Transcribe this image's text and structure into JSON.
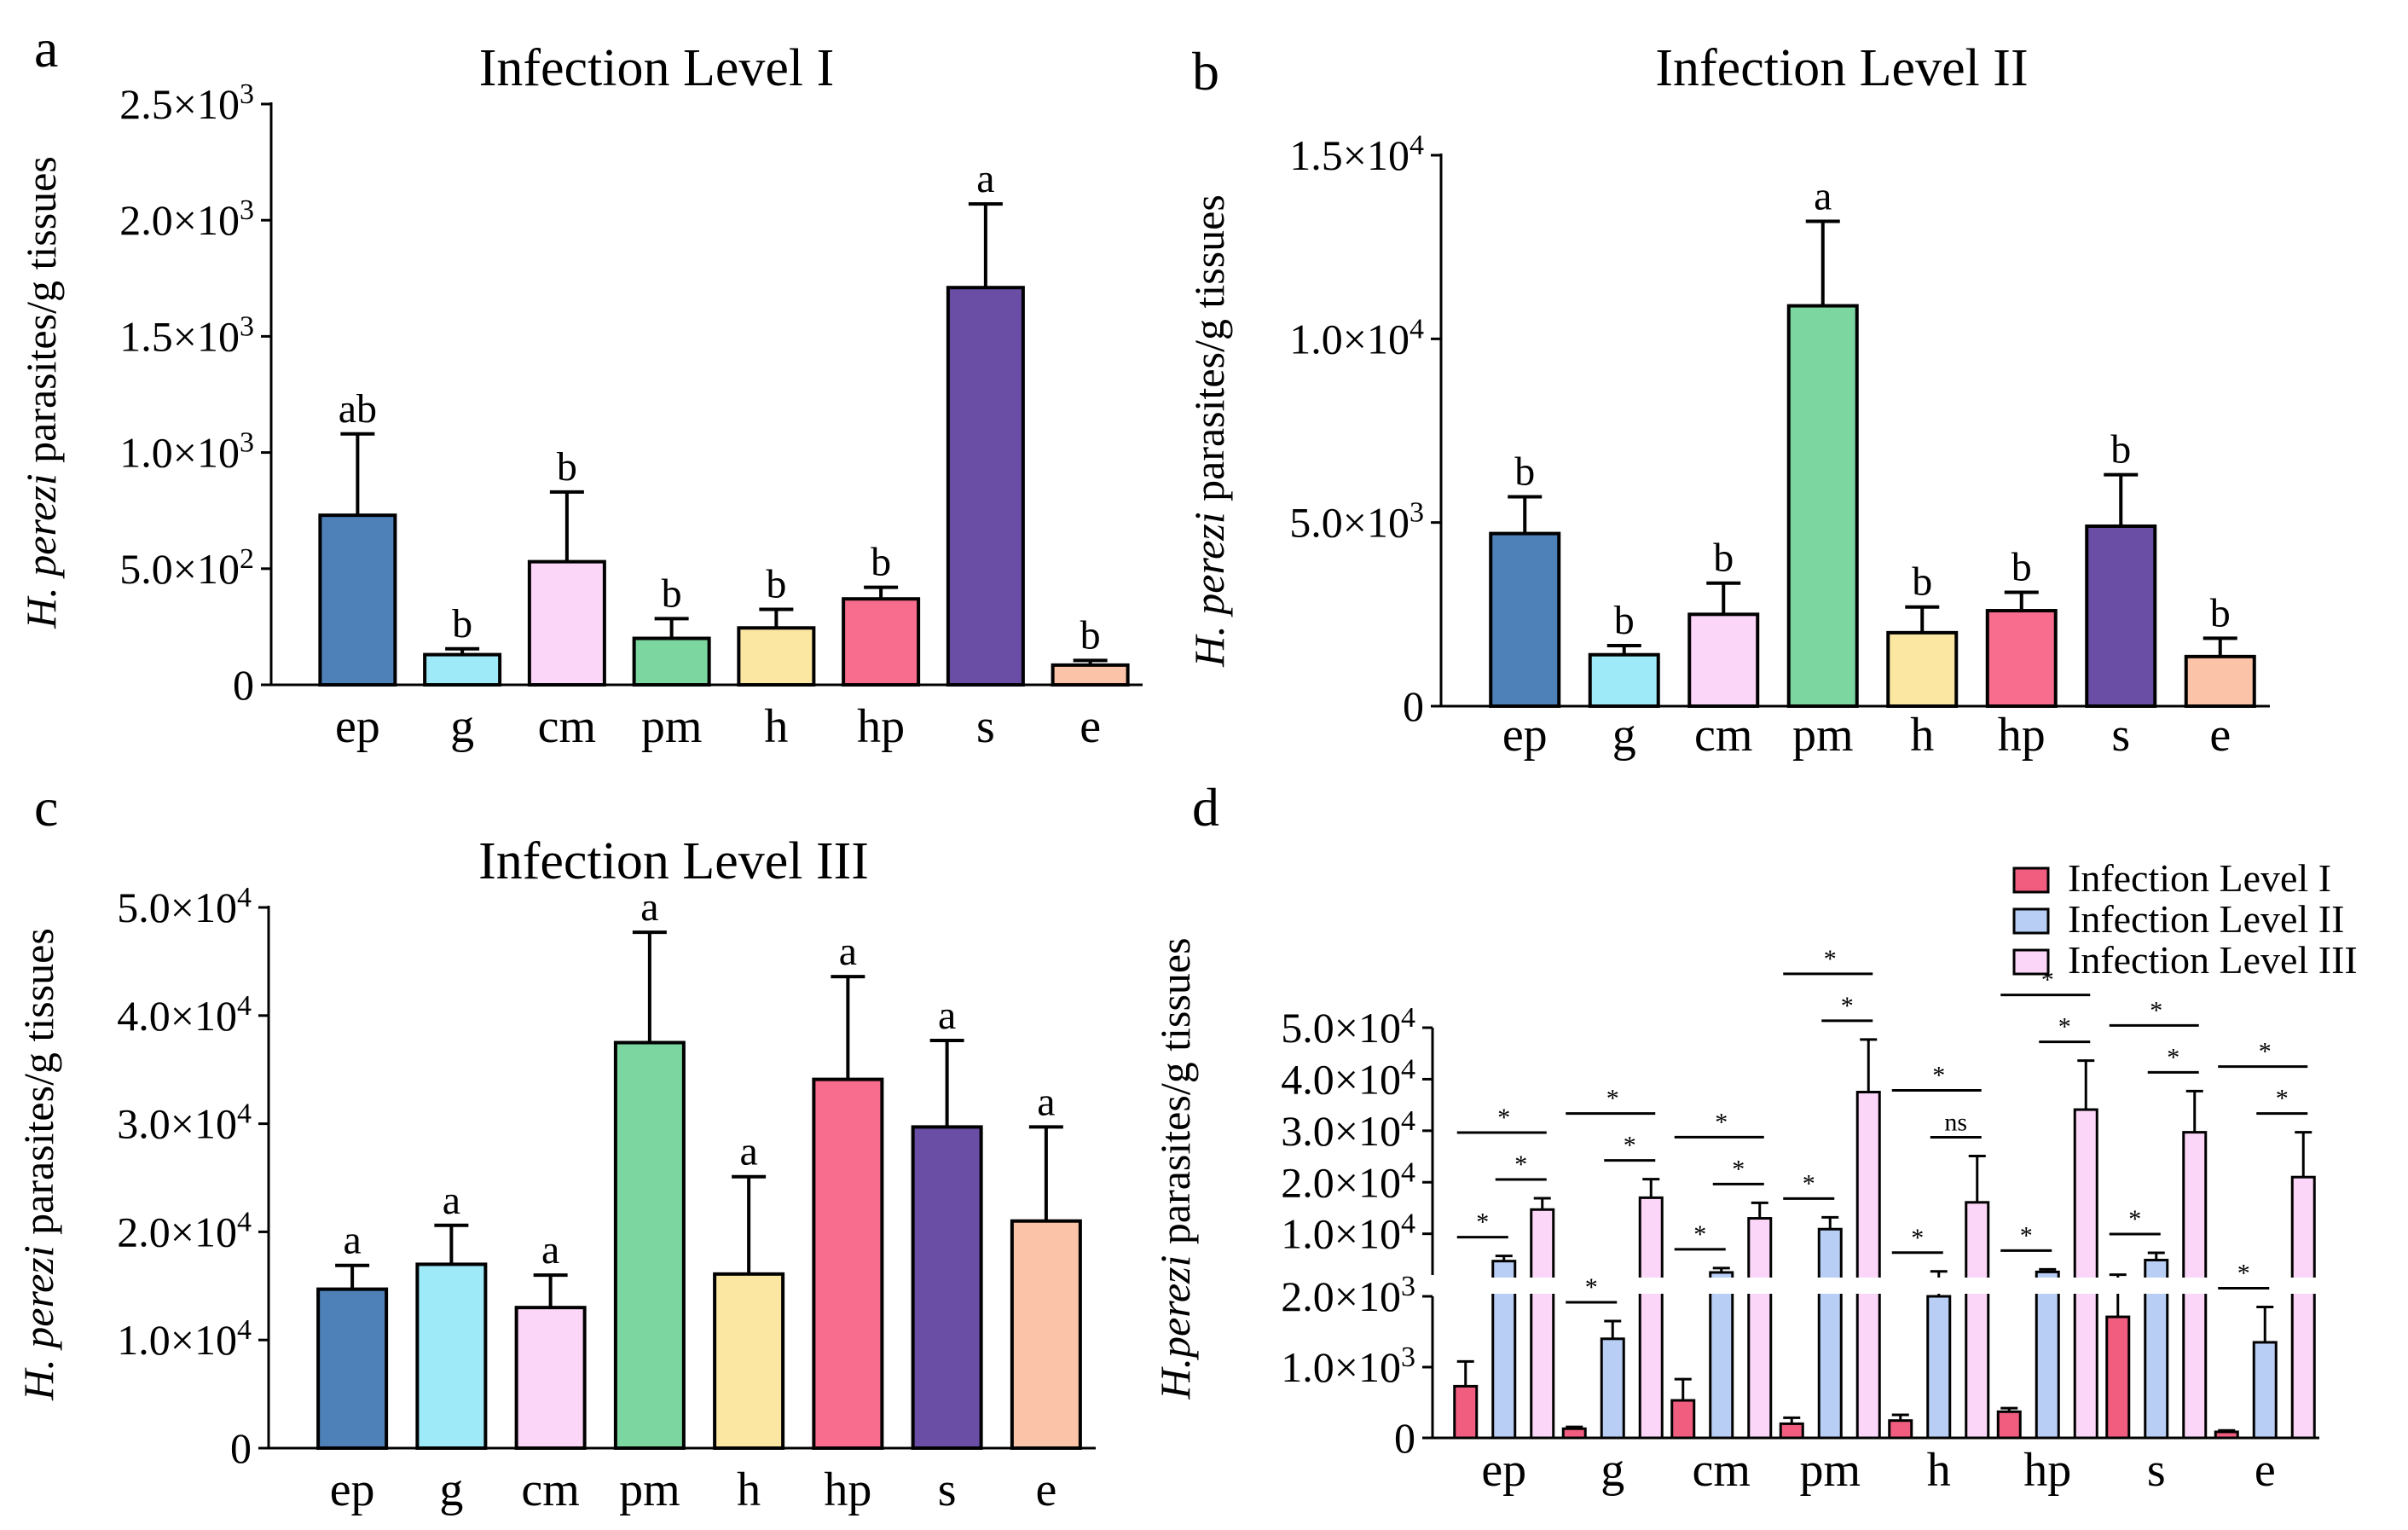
{
  "chart_data": [
    {
      "panel": "a",
      "type": "bar",
      "title": "Infection Level I",
      "ylabel_italic": "H. perezi",
      "ylabel_rest": " parasites/g tissues",
      "categories": [
        "ep",
        "g",
        "cm",
        "pm",
        "h",
        "hp",
        "s",
        "e"
      ],
      "values": [
        730,
        130,
        530,
        200,
        245,
        370,
        1710,
        85
      ],
      "errors": [
        350,
        25,
        300,
        85,
        80,
        50,
        360,
        20
      ],
      "letters": [
        "ab",
        "b",
        "b",
        "b",
        "b",
        "b",
        "a",
        "b"
      ],
      "colors": [
        "#4e81b8",
        "#9eeaf8",
        "#fcd6f8",
        "#7bd69f",
        "#fbe7a2",
        "#f86d8d",
        "#6a4ea6",
        "#fbc3a7"
      ],
      "ylim": [
        0,
        2500
      ],
      "yticks": [
        0,
        500,
        1000,
        1500,
        2000,
        2500
      ],
      "ytick_labels": [
        {
          "man": "0",
          "exp": ""
        },
        {
          "man": "5.0×10",
          "exp": "2"
        },
        {
          "man": "1.0×10",
          "exp": "3"
        },
        {
          "man": "1.5×10",
          "exp": "3"
        },
        {
          "man": "2.0×10",
          "exp": "3"
        },
        {
          "man": "2.5×10",
          "exp": "3"
        }
      ]
    },
    {
      "panel": "b",
      "type": "bar",
      "title": "Infection Level II",
      "ylabel_italic": "H. perezi",
      "ylabel_rest": " parasites/g tissues",
      "categories": [
        "ep",
        "g",
        "cm",
        "pm",
        "h",
        "hp",
        "s",
        "e"
      ],
      "values": [
        4700,
        1400,
        2500,
        10900,
        2000,
        2600,
        4900,
        1350
      ],
      "errors": [
        1000,
        250,
        850,
        2300,
        700,
        500,
        1400,
        500
      ],
      "letters": [
        "b",
        "b",
        "b",
        "a",
        "b",
        "b",
        "b",
        "b"
      ],
      "colors": [
        "#4e81b8",
        "#9eeaf8",
        "#fcd6f8",
        "#7bd69f",
        "#fbe7a2",
        "#f86d8d",
        "#6a4ea6",
        "#fbc3a7"
      ],
      "ylim": [
        0,
        15000
      ],
      "yticks": [
        0,
        5000,
        10000,
        15000
      ],
      "ytick_labels": [
        {
          "man": "0",
          "exp": ""
        },
        {
          "man": "5.0×10",
          "exp": "3"
        },
        {
          "man": "1.0×10",
          "exp": "4"
        },
        {
          "man": "1.5×10",
          "exp": "4"
        }
      ]
    },
    {
      "panel": "c",
      "type": "bar",
      "title": "Infection Level III",
      "ylabel_italic": "H. perezi",
      "ylabel_rest": " parasites/g tissues",
      "categories": [
        "ep",
        "g",
        "cm",
        "pm",
        "h",
        "hp",
        "s",
        "e"
      ],
      "values": [
        14700,
        17000,
        13000,
        37500,
        16100,
        34100,
        29700,
        21000
      ],
      "errors": [
        2200,
        3600,
        3000,
        10200,
        9000,
        9500,
        8000,
        8700
      ],
      "letters": [
        "a",
        "a",
        "a",
        "a",
        "a",
        "a",
        "a",
        "a"
      ],
      "colors": [
        "#4e81b8",
        "#9eeaf8",
        "#fcd6f8",
        "#7bd69f",
        "#fbe7a2",
        "#f86d8d",
        "#6a4ea6",
        "#fbc3a7"
      ],
      "ylim": [
        0,
        50000
      ],
      "yticks": [
        0,
        10000,
        20000,
        30000,
        40000,
        50000
      ],
      "ytick_labels": [
        {
          "man": "0",
          "exp": ""
        },
        {
          "man": "1.0×10",
          "exp": "4"
        },
        {
          "man": "2.0×10",
          "exp": "4"
        },
        {
          "man": "3.0×10",
          "exp": "4"
        },
        {
          "man": "4.0×10",
          "exp": "4"
        },
        {
          "man": "5.0×10",
          "exp": "4"
        }
      ]
    },
    {
      "panel": "d",
      "type": "bar",
      "ylabel_italic": "H.perezi",
      "ylabel_rest": " parasites/g tissues",
      "categories": [
        "ep",
        "g",
        "cm",
        "pm",
        "h",
        "hp",
        "s",
        "e"
      ],
      "axis_break": {
        "lower": [
          0,
          2000
        ],
        "upper": [
          2000,
          50000
        ]
      },
      "series": [
        {
          "name": "Infection Level I",
          "color": "#f05d7f",
          "values": [
            730,
            130,
            530,
            200,
            245,
            370,
            1710,
            85
          ],
          "errors": [
            350,
            25,
            300,
            85,
            80,
            50,
            360,
            20
          ]
        },
        {
          "name": "Infection Level II",
          "color": "#b8cef4",
          "values": [
            4700,
            1400,
            2500,
            10900,
            2000,
            2600,
            4900,
            1350
          ],
          "errors": [
            1000,
            250,
            850,
            2300,
            700,
            500,
            1400,
            500
          ]
        },
        {
          "name": "Infection Level III",
          "color": "#fcd6f8",
          "values": [
            14700,
            17000,
            13000,
            37500,
            16100,
            34100,
            29700,
            21000
          ],
          "errors": [
            2200,
            3600,
            3000,
            10200,
            9000,
            9500,
            8000,
            8700
          ]
        }
      ],
      "significance": [
        {
          "I_III": "*",
          "II_III": "*",
          "I_II": "*"
        },
        {
          "I_III": "*",
          "II_III": "*",
          "I_II": "*"
        },
        {
          "I_III": "*",
          "II_III": "*",
          "I_II": "*"
        },
        {
          "I_III": "*",
          "II_III": "*",
          "I_II": "*"
        },
        {
          "I_III": "*",
          "II_III": "ns",
          "I_II": "*"
        },
        {
          "I_III": "*",
          "II_III": "*",
          "I_II": "*"
        },
        {
          "I_III": "*",
          "II_III": "*",
          "I_II": "*"
        },
        {
          "I_III": "*",
          "II_III": "*",
          "I_II": "*"
        }
      ],
      "yticks_lower": [
        0,
        1000,
        2000
      ],
      "ytick_labels_lower": [
        {
          "man": "0",
          "exp": ""
        },
        {
          "man": "1.0×10",
          "exp": "3"
        },
        {
          "man": "2.0×10",
          "exp": "3"
        }
      ],
      "yticks_upper": [
        10000,
        20000,
        30000,
        40000,
        50000
      ],
      "ytick_labels_upper": [
        {
          "man": "1.0×10",
          "exp": "4"
        },
        {
          "man": "2.0×10",
          "exp": "4"
        },
        {
          "man": "3.0×10",
          "exp": "4"
        },
        {
          "man": "4.0×10",
          "exp": "4"
        },
        {
          "man": "5.0×10",
          "exp": "4"
        }
      ]
    }
  ]
}
